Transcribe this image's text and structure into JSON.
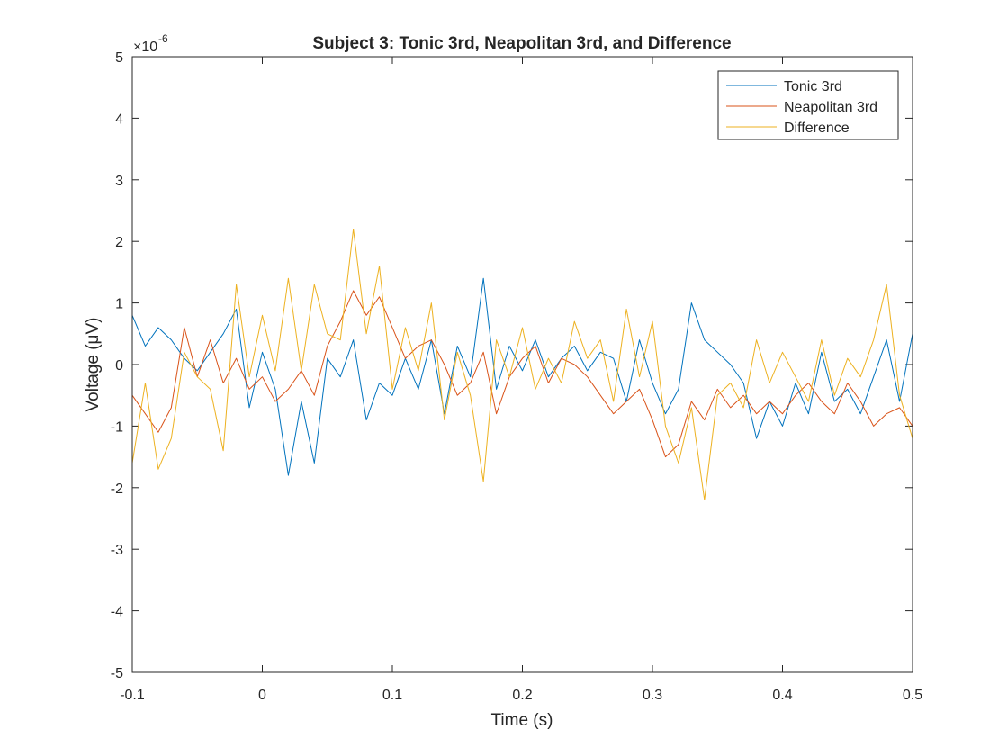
{
  "chart_data": {
    "type": "line",
    "title": "Subject 3: Tonic 3rd, Neapolitan 3rd, and Difference",
    "xlabel": "Time (s)",
    "ylabel": "Voltage (μV)",
    "y_exponent_label": "×10",
    "y_exponent_power": "-6",
    "xlim": [
      -0.1,
      0.5
    ],
    "ylim": [
      -5,
      5
    ],
    "xticks": [
      -0.1,
      0,
      0.1,
      0.2,
      0.3,
      0.4,
      0.5
    ],
    "xtick_labels": [
      "-0.1",
      "0",
      "0.1",
      "0.2",
      "0.3",
      "0.4",
      "0.5"
    ],
    "yticks": [
      -5,
      -4,
      -3,
      -2,
      -1,
      0,
      1,
      2,
      3,
      4,
      5
    ],
    "ytick_labels": [
      "-5",
      "-4",
      "-3",
      "-2",
      "-1",
      "0",
      "1",
      "2",
      "3",
      "4",
      "5"
    ],
    "grid": false,
    "legend_position": "top-right",
    "x": [
      -0.1,
      -0.09,
      -0.08,
      -0.07,
      -0.06,
      -0.05,
      -0.04,
      -0.03,
      -0.02,
      -0.01,
      0,
      0.01,
      0.02,
      0.03,
      0.04,
      0.05,
      0.06,
      0.07,
      0.08,
      0.09,
      0.1,
      0.11,
      0.12,
      0.13,
      0.14,
      0.15,
      0.16,
      0.17,
      0.18,
      0.19,
      0.2,
      0.21,
      0.22,
      0.23,
      0.24,
      0.25,
      0.26,
      0.27,
      0.28,
      0.29,
      0.3,
      0.31,
      0.32,
      0.33,
      0.34,
      0.35,
      0.36,
      0.37,
      0.38,
      0.39,
      0.4,
      0.41,
      0.42,
      0.43,
      0.44,
      0.45,
      0.46,
      0.47,
      0.48,
      0.49,
      0.5
    ],
    "series": [
      {
        "name": "Tonic 3rd",
        "color": "#0072BD",
        "values": [
          0.8,
          0.3,
          0.6,
          0.4,
          0.1,
          -0.1,
          0.2,
          0.5,
          0.9,
          -0.7,
          0.2,
          -0.4,
          -1.8,
          -0.6,
          -1.6,
          0.1,
          -0.2,
          0.4,
          -0.9,
          -0.3,
          -0.5,
          0.1,
          -0.4,
          0.4,
          -0.8,
          0.3,
          -0.2,
          1.4,
          -0.4,
          0.3,
          -0.1,
          0.4,
          -0.2,
          0.1,
          0.3,
          -0.1,
          0.2,
          0.1,
          -0.6,
          0.4,
          -0.3,
          -0.8,
          -0.4,
          1.0,
          0.4,
          0.2,
          0.0,
          -0.3,
          -1.2,
          -0.6,
          -1.0,
          -0.3,
          -0.8,
          0.2,
          -0.6,
          -0.4,
          -0.8,
          -0.2,
          0.4,
          -0.6,
          0.5
        ]
      },
      {
        "name": "Neapolitan 3rd",
        "color": "#D95319",
        "values": [
          -0.5,
          -0.8,
          -1.1,
          -0.7,
          0.6,
          -0.2,
          0.4,
          -0.3,
          0.1,
          -0.4,
          -0.2,
          -0.6,
          -0.4,
          -0.1,
          -0.5,
          0.3,
          0.7,
          1.2,
          0.8,
          1.1,
          0.6,
          0.1,
          0.3,
          0.4,
          0.0,
          -0.5,
          -0.3,
          0.2,
          -0.8,
          -0.2,
          0.1,
          0.3,
          -0.3,
          0.1,
          0.0,
          -0.2,
          -0.5,
          -0.8,
          -0.6,
          -0.4,
          -0.9,
          -1.5,
          -1.3,
          -0.6,
          -0.9,
          -0.4,
          -0.7,
          -0.5,
          -0.8,
          -0.6,
          -0.8,
          -0.5,
          -0.3,
          -0.6,
          -0.8,
          -0.3,
          -0.6,
          -1.0,
          -0.8,
          -0.7,
          -1.0
        ]
      },
      {
        "name": "Difference",
        "color": "#EDB120",
        "values": [
          -1.6,
          -0.3,
          -1.7,
          -1.2,
          0.2,
          -0.2,
          -0.4,
          -1.4,
          1.3,
          -0.2,
          0.8,
          -0.1,
          1.4,
          -0.1,
          1.3,
          0.5,
          0.4,
          2.2,
          0.5,
          1.6,
          -0.4,
          0.6,
          -0.1,
          1.0,
          -0.9,
          0.2,
          -0.5,
          -1.9,
          0.4,
          -0.2,
          0.6,
          -0.4,
          0.1,
          -0.3,
          0.7,
          0.1,
          0.4,
          -0.6,
          0.9,
          -0.2,
          0.7,
          -1.0,
          -1.6,
          -0.7,
          -2.2,
          -0.5,
          -0.3,
          -0.7,
          0.4,
          -0.3,
          0.2,
          -0.2,
          -0.6,
          0.4,
          -0.5,
          0.1,
          -0.2,
          0.4,
          1.3,
          -0.5,
          -1.2
        ]
      }
    ]
  }
}
